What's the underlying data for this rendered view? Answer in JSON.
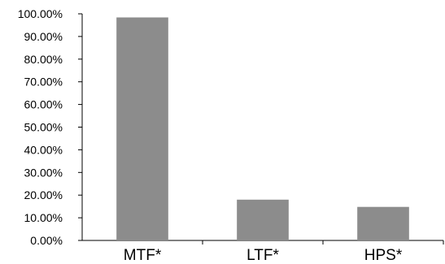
{
  "chart_data": {
    "type": "bar",
    "categories": [
      "MTF*",
      "LTF*",
      "HPS*"
    ],
    "values": [
      98.4,
      18.0,
      14.8
    ],
    "unit": "%",
    "ylim": [
      0,
      100
    ],
    "ytick_step": 10,
    "ytick_labels": [
      "0.00%",
      "10.00%",
      "20.00%",
      "30.00%",
      "40.00%",
      "50.00%",
      "60.00%",
      "70.00%",
      "80.00%",
      "90.00%",
      "100.00%"
    ],
    "grid": false,
    "legend": "none",
    "bar_color": "#8c8c8c",
    "axis_color": "#000000"
  }
}
